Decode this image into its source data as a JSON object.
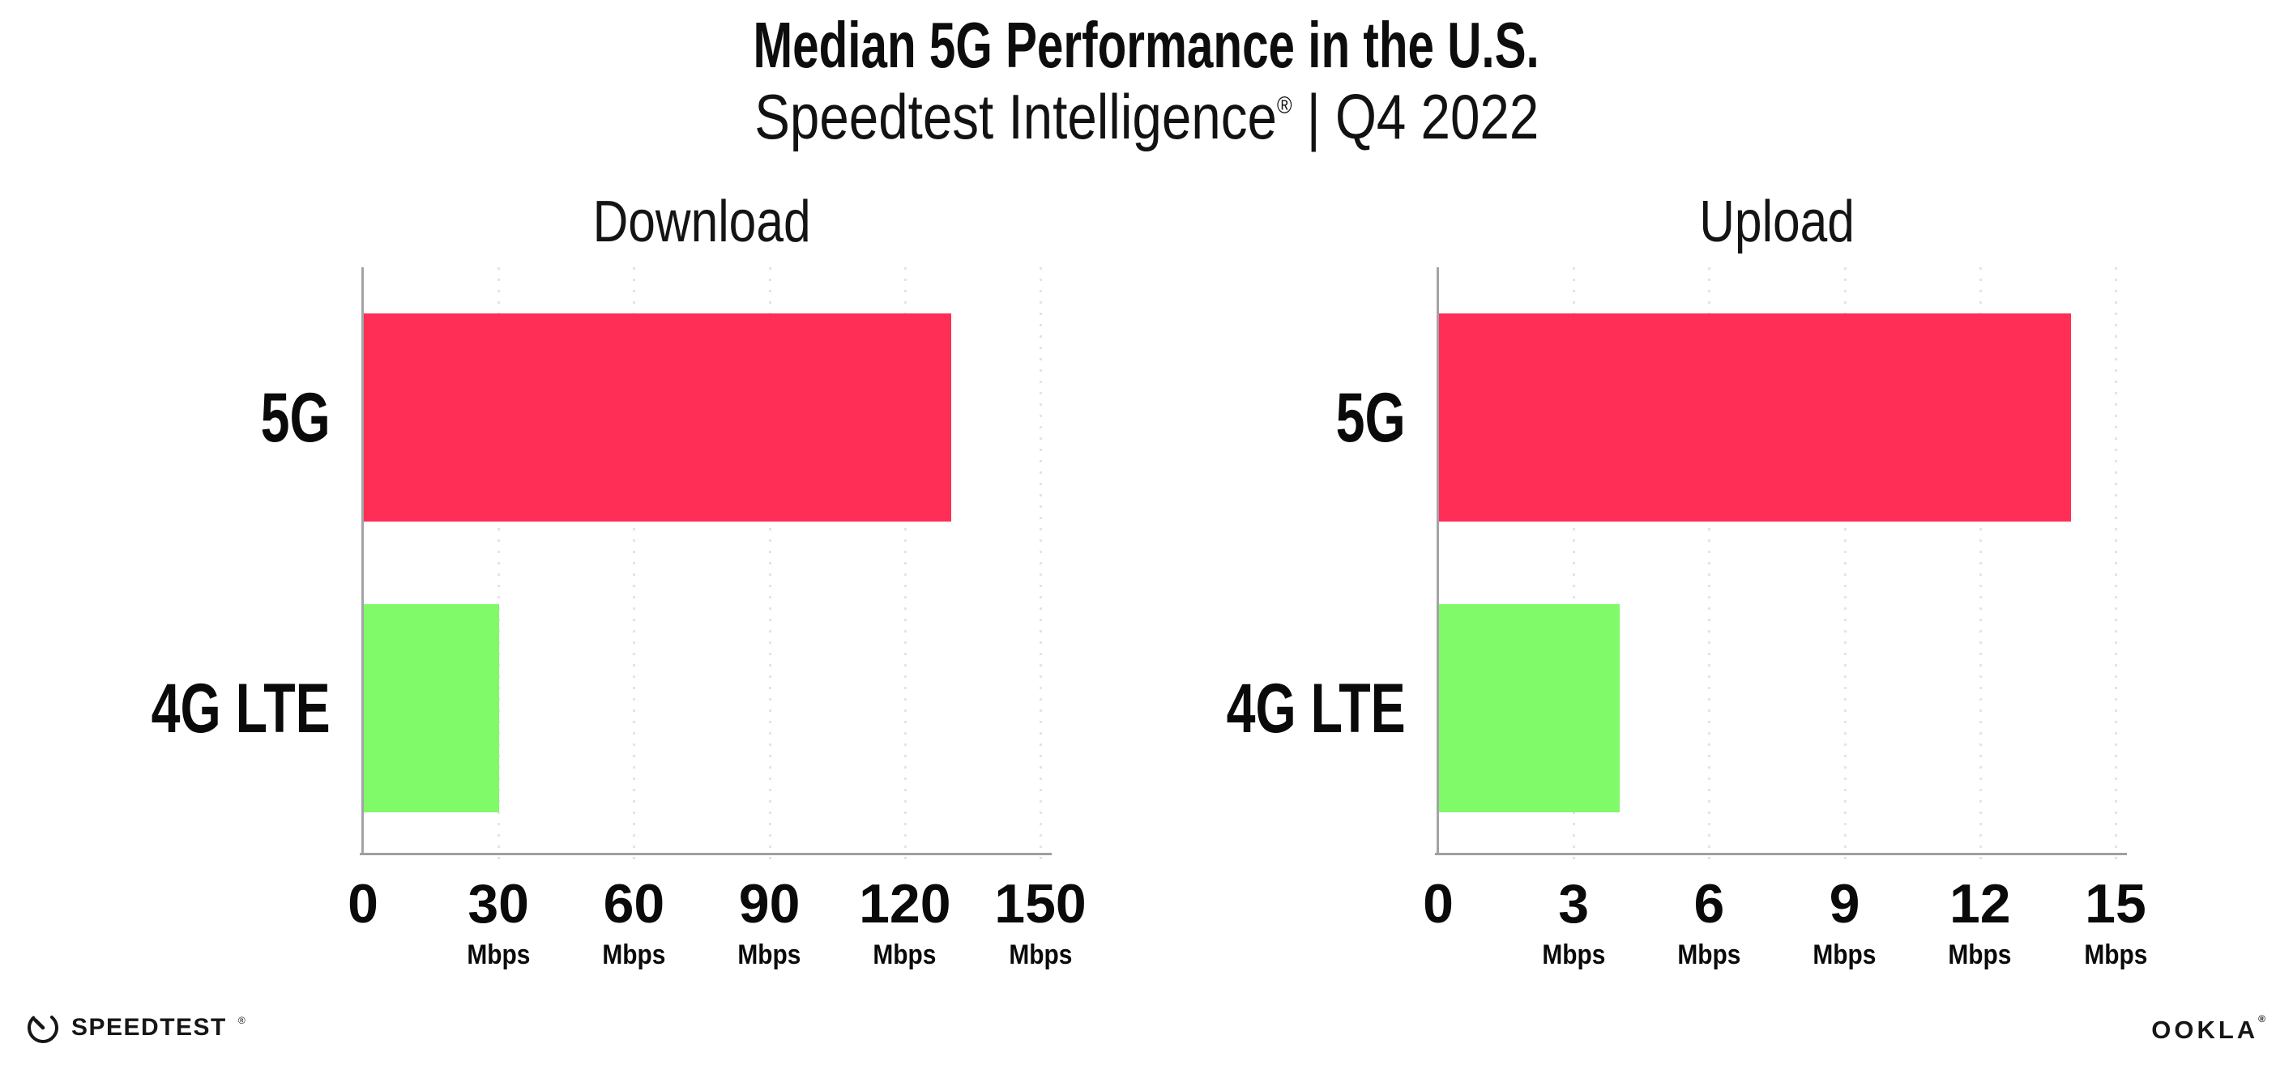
{
  "header": {
    "title": "Median 5G Performance in the U.S.",
    "subtitle_product": "Speedtest Intelligence",
    "subtitle_reg": "®",
    "subtitle_rest": " | Q4 2022"
  },
  "chart_data": [
    {
      "type": "bar",
      "orientation": "horizontal",
      "title": "Download",
      "categories": [
        "5G",
        "4G LTE"
      ],
      "values": [
        130,
        30
      ],
      "unit": "Mbps",
      "xlabel": "",
      "ylabel": "",
      "xlim": [
        0,
        150
      ],
      "xticks": [
        0,
        30,
        60,
        90,
        120,
        150
      ],
      "bar_colors": [
        "#ff2e57",
        "#80fa68"
      ],
      "grid": "dotted-vertical-gridlines",
      "legend": "none"
    },
    {
      "type": "bar",
      "orientation": "horizontal",
      "title": "Upload",
      "categories": [
        "5G",
        "4G LTE"
      ],
      "values": [
        14,
        4
      ],
      "unit": "Mbps",
      "xlabel": "",
      "ylabel": "",
      "xlim": [
        0,
        15
      ],
      "xticks": [
        0,
        3,
        6,
        9,
        12,
        15
      ],
      "bar_colors": [
        "#ff2e57",
        "#80fa68"
      ],
      "grid": "dotted-vertical-gridlines",
      "legend": "none"
    }
  ],
  "footer": {
    "speedtest_label": "SPEEDTEST",
    "speedtest_mark": "®",
    "ookla_label": "OOKLA",
    "ookla_mark": "®"
  },
  "colors": {
    "background": "#ffffff",
    "bar_5g": "#ff2e57",
    "bar_4g_lte": "#80fa68",
    "axis_line": "#9e9ea3",
    "gridline_dots": "#e3e3ed",
    "text": "#0b0b0b"
  }
}
